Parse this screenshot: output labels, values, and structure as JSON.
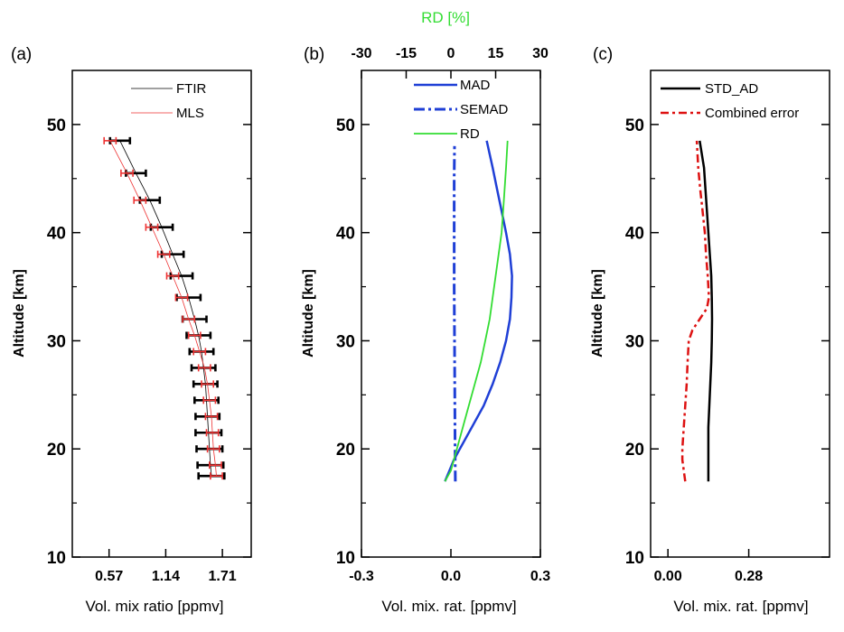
{
  "chart_data": [
    {
      "panel": "(a)",
      "type": "line",
      "xlabel": "Vol. mix ratio [ppmv]",
      "ylabel": "Altitude [km]",
      "xlim": [
        0.2,
        2.0
      ],
      "ylim": [
        10,
        55
      ],
      "xticks": [
        "0.57",
        "1.14",
        "1.71"
      ],
      "xtick_values": [
        0.57,
        1.14,
        1.71
      ],
      "yticks": [
        "10",
        "20",
        "30",
        "40",
        "50"
      ],
      "ytick_values": [
        10,
        20,
        30,
        40,
        50
      ],
      "legend": [
        "FTIR",
        "MLS"
      ],
      "series": [
        {
          "name": "FTIR",
          "color": "#000000",
          "altitude": [
            48.5,
            45.5,
            43.0,
            40.5,
            38.0,
            36.0,
            34.0,
            32.0,
            30.5,
            29.0,
            27.5,
            26.0,
            24.5,
            23.0,
            21.5,
            20.0,
            18.5,
            17.5
          ],
          "values": [
            0.68,
            0.84,
            0.98,
            1.1,
            1.21,
            1.3,
            1.37,
            1.43,
            1.47,
            1.5,
            1.52,
            1.54,
            1.55,
            1.56,
            1.57,
            1.58,
            1.59,
            1.6
          ],
          "error": [
            0.1,
            0.1,
            0.1,
            0.11,
            0.11,
            0.11,
            0.12,
            0.12,
            0.12,
            0.12,
            0.12,
            0.12,
            0.12,
            0.12,
            0.13,
            0.13,
            0.13,
            0.13
          ]
        },
        {
          "name": "MLS",
          "color": "#ee3333",
          "altitude": [
            48.5,
            45.5,
            43.0,
            40.5,
            38.0,
            36.0,
            34.0,
            32.0,
            30.5,
            29.0,
            27.5,
            26.0,
            24.5,
            23.0,
            21.5,
            20.0,
            18.5,
            17.5
          ],
          "values": [
            0.58,
            0.75,
            0.88,
            1.0,
            1.12,
            1.21,
            1.3,
            1.37,
            1.43,
            1.48,
            1.53,
            1.56,
            1.58,
            1.6,
            1.61,
            1.62,
            1.64,
            1.65
          ],
          "error": [
            0.06,
            0.06,
            0.06,
            0.06,
            0.06,
            0.06,
            0.06,
            0.06,
            0.06,
            0.06,
            0.06,
            0.06,
            0.06,
            0.06,
            0.06,
            0.06,
            0.06,
            0.06
          ]
        }
      ]
    },
    {
      "panel": "(b)",
      "type": "line",
      "title": "RD [%]",
      "xlabel": "Vol. mix. rat. [ppmv]",
      "ylabel": "Altitude [km]",
      "xlim": [
        -0.3,
        0.3
      ],
      "xticks": [
        "-0.3",
        "0.0",
        "0.3"
      ],
      "xtick_values": [
        -0.3,
        0.0,
        0.3
      ],
      "top_xlim": [
        -30,
        30
      ],
      "top_xticks": [
        "-30",
        "-15",
        "0",
        "15",
        "30"
      ],
      "top_xtick_values": [
        -30,
        -15,
        0,
        15,
        30
      ],
      "ylim": [
        10,
        55
      ],
      "yticks": [
        "10",
        "20",
        "30",
        "40",
        "50"
      ],
      "ytick_values": [
        10,
        20,
        30,
        40,
        50
      ],
      "legend": [
        "MAD",
        "SEMAD",
        "RD"
      ],
      "series": [
        {
          "name": "MAD",
          "color": "#1f3fd6",
          "axis": "bottom",
          "altitude": [
            17.0,
            18.0,
            19.0,
            20.0,
            22.0,
            24.0,
            26.0,
            28.0,
            30.0,
            32.0,
            34.0,
            36.0,
            38.0,
            40.0,
            42.0,
            44.0,
            46.0,
            48.5
          ],
          "values": [
            -0.02,
            -0.005,
            0.01,
            0.03,
            0.07,
            0.11,
            0.14,
            0.165,
            0.185,
            0.198,
            0.203,
            0.205,
            0.198,
            0.185,
            0.17,
            0.155,
            0.14,
            0.12
          ]
        },
        {
          "name": "SEMAD",
          "color": "#1f3fd6",
          "axis": "bottom",
          "altitude": [
            17.0,
            20.0,
            25.0,
            30.0,
            35.0,
            40.0,
            45.0,
            48.0
          ],
          "values": [
            0.015,
            0.014,
            0.013,
            0.012,
            0.011,
            0.011,
            0.011,
            0.012
          ]
        },
        {
          "name": "RD",
          "color": "#33dd33",
          "axis": "top",
          "altitude": [
            17.0,
            18.0,
            20.0,
            22.0,
            24.0,
            26.0,
            28.0,
            30.0,
            32.0,
            34.0,
            36.0,
            38.0,
            40.0,
            42.0,
            44.0,
            46.0,
            48.5
          ],
          "values": [
            -2,
            0,
            2,
            4,
            6,
            8,
            10,
            11.5,
            13,
            14,
            15,
            16,
            17,
            17.5,
            18,
            18.5,
            19
          ]
        }
      ]
    },
    {
      "panel": "(c)",
      "type": "line",
      "xlabel": "Vol. mix. rat. [ppmv]",
      "ylabel": "Altitude [km]",
      "xlim": [
        -0.06,
        0.56
      ],
      "xticks": [
        "0.00",
        "0.28"
      ],
      "xtick_values": [
        0.0,
        0.28
      ],
      "ylim": [
        10,
        55
      ],
      "yticks": [
        "10",
        "20",
        "30",
        "40",
        "50"
      ],
      "ytick_values": [
        10,
        20,
        30,
        40,
        50
      ],
      "legend": [
        "STD_AD",
        "Combined error"
      ],
      "series": [
        {
          "name": "STD_AD",
          "color": "#000000",
          "altitude": [
            17.0,
            20.0,
            22.0,
            25.0,
            28.0,
            30.0,
            32.0,
            34.0,
            36.0,
            38.0,
            40.0,
            42.0,
            44.0,
            46.0,
            48.5
          ],
          "values": [
            0.14,
            0.14,
            0.14,
            0.145,
            0.15,
            0.152,
            0.153,
            0.152,
            0.15,
            0.145,
            0.14,
            0.135,
            0.13,
            0.125,
            0.11
          ]
        },
        {
          "name": "Combined error",
          "color": "#dd1111",
          "altitude": [
            17.0,
            19.0,
            20.0,
            22.0,
            24.0,
            26.0,
            28.0,
            30.0,
            31.0,
            32.0,
            33.0,
            34.0,
            35.0,
            36.0,
            38.0,
            40.0,
            42.0,
            44.0,
            46.0,
            48.5
          ],
          "values": [
            0.06,
            0.05,
            0.05,
            0.055,
            0.06,
            0.065,
            0.068,
            0.072,
            0.085,
            0.11,
            0.135,
            0.142,
            0.14,
            0.138,
            0.132,
            0.128,
            0.12,
            0.112,
            0.105,
            0.1
          ]
        }
      ]
    }
  ]
}
